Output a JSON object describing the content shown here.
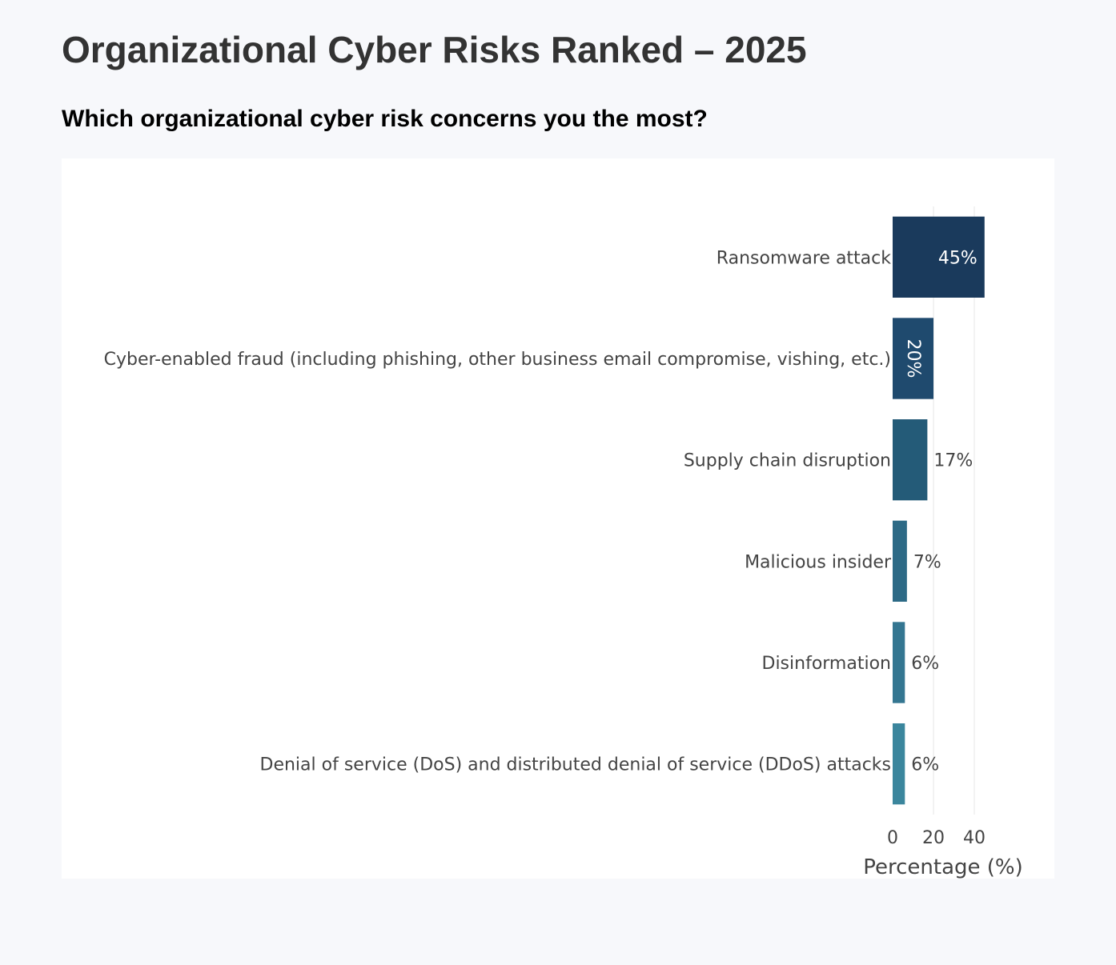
{
  "page": {
    "title": "Organizational Cyber Risks Ranked – 2025",
    "question": "Which organizational cyber risk concerns you the most?"
  },
  "chart_data": {
    "type": "bar",
    "orientation": "horizontal",
    "categories": [
      "Ransomware attack",
      "Cyber-enabled fraud (including phishing, other business email compromise, vishing, etc.)",
      "Supply chain disruption",
      "Malicious insider",
      "Disinformation",
      "Denial of service (DoS) and distributed denial of service (DDoS) attacks"
    ],
    "values": [
      45,
      20,
      17,
      7,
      6,
      6
    ],
    "value_labels": [
      "45%",
      "20%",
      "17%",
      "7%",
      "6%",
      "6%"
    ],
    "label_position": [
      "inside",
      "inside",
      "outside",
      "outside",
      "outside",
      "outside"
    ],
    "colors": [
      "#1a3a5c",
      "#1f4a6e",
      "#245b78",
      "#2d6a86",
      "#347691",
      "#3b869d"
    ],
    "xlabel": "Percentage (%)",
    "ylabel": "",
    "xticks": [
      0,
      20,
      40
    ],
    "xlim": [
      0,
      49
    ],
    "grid": true,
    "legend": false
  }
}
